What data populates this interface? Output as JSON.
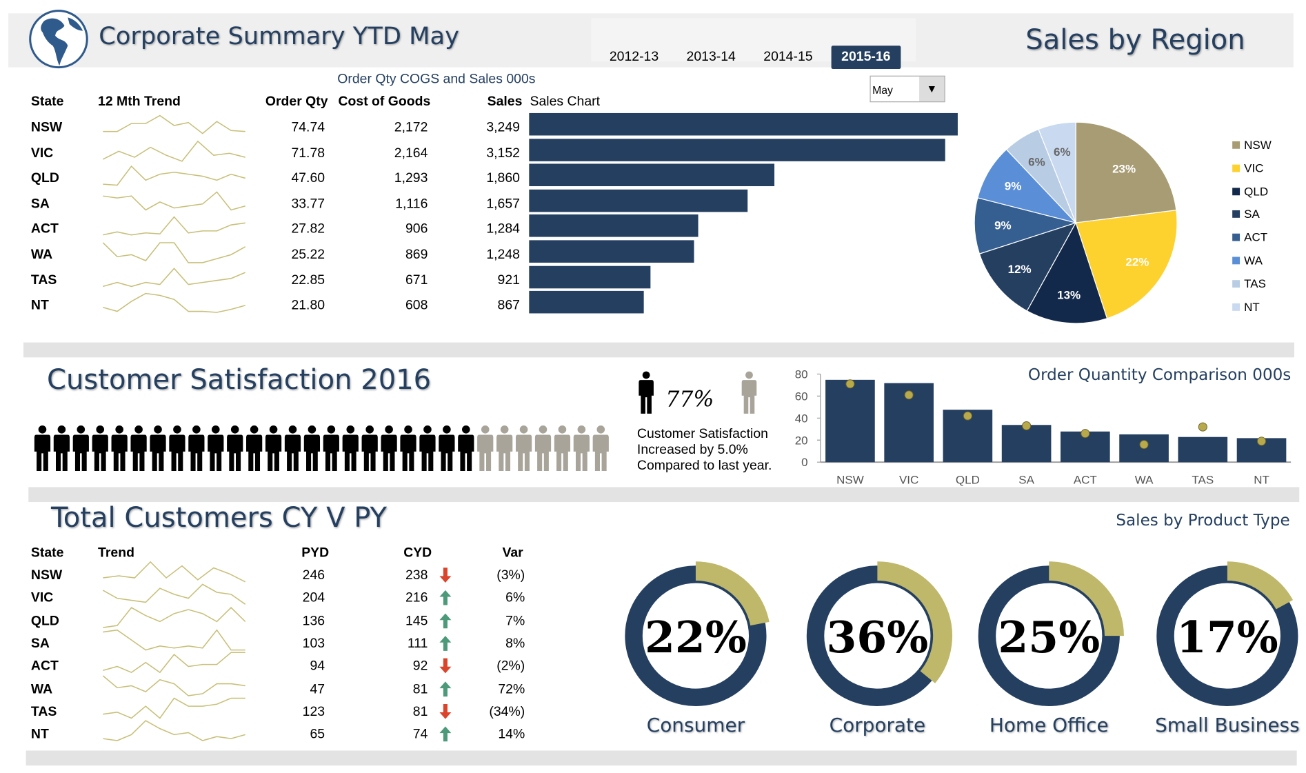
{
  "header": {
    "title": "Corporate Summary YTD May",
    "years": [
      "2012-13",
      "2013-14",
      "2014-15",
      "2015-16"
    ],
    "selected_year": "2015-16",
    "right_title": "Sales by Region",
    "logo_icon": "globe-icon"
  },
  "sales_table": {
    "caption": "Order Qty COGS and Sales 000s",
    "month_select": "May",
    "columns": [
      "State",
      "12 Mth Trend",
      "Order Qty",
      "Cost of Goods",
      "Sales",
      "Sales Chart"
    ],
    "rows": [
      {
        "state": "NSW",
        "order_qty": "74.74",
        "cogs": "2,172",
        "sales": "3,249",
        "sales_value": 3249,
        "trend": [
          2,
          2,
          6,
          6,
          10,
          5,
          6.5,
          1,
          7,
          2.5,
          2
        ]
      },
      {
        "state": "VIC",
        "order_qty": "71.78",
        "cogs": "2,164",
        "sales": "3,152",
        "sales_value": 3152,
        "trend": [
          1,
          5,
          2,
          7,
          3,
          0,
          10,
          3,
          4,
          2
        ]
      },
      {
        "state": "QLD",
        "order_qty": "47.60",
        "cogs": "1,293",
        "sales": "1,860",
        "sales_value": 1860,
        "trend": [
          1,
          0.5,
          10,
          3,
          6,
          7,
          6,
          5,
          3,
          6,
          4
        ]
      },
      {
        "state": "SA",
        "order_qty": "33.77",
        "cogs": "1,116",
        "sales": "1,657",
        "sales_value": 1657,
        "trend": [
          8,
          7,
          8,
          1,
          5,
          2,
          3,
          4,
          10,
          1,
          3
        ]
      },
      {
        "state": "ACT",
        "order_qty": "27.82",
        "cogs": "906",
        "sales": "1,284",
        "sales_value": 1284,
        "trend": [
          1,
          2.5,
          1,
          2,
          1.5,
          10,
          2,
          3,
          3,
          6,
          7
        ]
      },
      {
        "state": "WA",
        "order_qty": "25.22",
        "cogs": "869",
        "sales": "1,248",
        "sales_value": 1248,
        "trend": [
          10,
          3,
          4,
          1,
          10,
          10,
          0,
          0,
          2,
          4,
          8
        ]
      },
      {
        "state": "TAS",
        "order_qty": "22.85",
        "cogs": "671",
        "sales": "921",
        "sales_value": 921,
        "trend": [
          1,
          3,
          1,
          3,
          2,
          10,
          2,
          3,
          4,
          5,
          8
        ]
      },
      {
        "state": "NT",
        "order_qty": "21.80",
        "cogs": "608",
        "sales": "867",
        "sales_value": 867,
        "trend": [
          3,
          1,
          6,
          10,
          9,
          7,
          1,
          1,
          0.5,
          2,
          4
        ]
      }
    ]
  },
  "region_pie": {
    "type": "pie",
    "slices": [
      {
        "label": "NSW",
        "value": 23,
        "text": "23%",
        "color": "#A89C74"
      },
      {
        "label": "VIC",
        "value": 22,
        "text": "22%",
        "color": "#FDD12E"
      },
      {
        "label": "QLD",
        "value": 13,
        "text": "13%",
        "color": "#13294B"
      },
      {
        "label": "SA",
        "value": 12,
        "text": "12%",
        "color": "#253F61"
      },
      {
        "label": "ACT",
        "value": 9,
        "text": "9%",
        "color": "#355E91"
      },
      {
        "label": "WA",
        "value": 9,
        "text": "9%",
        "color": "#5A8FD8"
      },
      {
        "label": "TAS",
        "value": 6,
        "text": "6%",
        "color": "#B8CCE4"
      },
      {
        "label": "NT",
        "value": 6,
        "text": "6%",
        "color": "#C9D9F0"
      }
    ]
  },
  "satisfaction": {
    "title": "Customer Satisfaction 2016",
    "percent": "77%",
    "satisfied_fraction": 0.77,
    "figures_total": 30,
    "text_lines": [
      "Customer Satisfaction",
      "Increased by 5.0%",
      "Compared to last year."
    ]
  },
  "chart_data": {
    "type": "bar",
    "title": "Order Quantity Comparison 000s",
    "categories": [
      "NSW",
      "VIC",
      "QLD",
      "SA",
      "ACT",
      "WA",
      "TAS",
      "NT"
    ],
    "series": [
      {
        "values": [
          74.74,
          71.78,
          47.6,
          33.77,
          27.82,
          25.22,
          22.85,
          21.8
        ]
      },
      {
        "values": [
          71,
          61,
          42,
          33,
          26,
          16,
          32,
          19
        ]
      }
    ],
    "ylim": [
      0,
      80
    ],
    "yticks": [
      "0",
      "20",
      "40",
      "60",
      "80"
    ]
  },
  "customers": {
    "title": "Total Customers CY V PY",
    "columns": [
      "State",
      "Trend",
      "PYD",
      "CYD",
      "Var"
    ],
    "rows": [
      {
        "state": "NSW",
        "pyd": "246",
        "cyd": "238",
        "dir": "down",
        "var": "(3%)",
        "trend": [
          2,
          3,
          2,
          10,
          2,
          8,
          1,
          7,
          4,
          0
        ]
      },
      {
        "state": "VIC",
        "pyd": "204",
        "cyd": "216",
        "dir": "up",
        "var": "6%",
        "trend": [
          7,
          3,
          2,
          1,
          8,
          5,
          3,
          10,
          6,
          5,
          0
        ]
      },
      {
        "state": "QLD",
        "pyd": "136",
        "cyd": "145",
        "dir": "up",
        "var": "7%",
        "trend": [
          0,
          1,
          10,
          6,
          3,
          7,
          9,
          7,
          3,
          10,
          3
        ]
      },
      {
        "state": "SA",
        "pyd": "103",
        "cyd": "111",
        "dir": "up",
        "var": "8%",
        "trend": [
          9,
          10,
          5,
          0,
          2,
          1,
          2,
          1,
          10,
          0,
          0
        ]
      },
      {
        "state": "ACT",
        "pyd": "94",
        "cyd": "92",
        "dir": "down",
        "var": "(2%)",
        "trend": [
          1,
          3,
          0,
          5,
          0,
          9,
          3,
          4,
          4,
          10,
          10
        ]
      },
      {
        "state": "WA",
        "pyd": "47",
        "cyd": "81",
        "dir": "up",
        "var": "72%",
        "trend": [
          10,
          4,
          5,
          2,
          8,
          6,
          0,
          1,
          6,
          6,
          5
        ]
      },
      {
        "state": "TAS",
        "pyd": "123",
        "cyd": "81",
        "dir": "down",
        "var": "(34%)",
        "trend": [
          2,
          3,
          0,
          6,
          0,
          10,
          6,
          6,
          7,
          10,
          10
        ]
      },
      {
        "state": "NT",
        "pyd": "65",
        "cyd": "74",
        "dir": "up",
        "var": "14%",
        "trend": [
          1,
          0,
          3,
          10,
          6,
          3,
          4,
          0,
          2,
          1,
          3
        ]
      }
    ]
  },
  "product_type": {
    "title": "Sales by Product Type",
    "items": [
      {
        "label": "Consumer",
        "text": "22%",
        "value": 22
      },
      {
        "label": "Corporate",
        "text": "36%",
        "value": 36
      },
      {
        "label": "Home Office",
        "text": "25%",
        "value": 25
      },
      {
        "label": "Small Business",
        "text": "17%",
        "value": 17
      }
    ]
  },
  "colors": {
    "navy": "#243F60",
    "gold": "#BFB76A",
    "trend": "#C8C07A",
    "up": "#4C9A7A",
    "down": "#D9442B",
    "grey_figure": "#A8A49A"
  }
}
